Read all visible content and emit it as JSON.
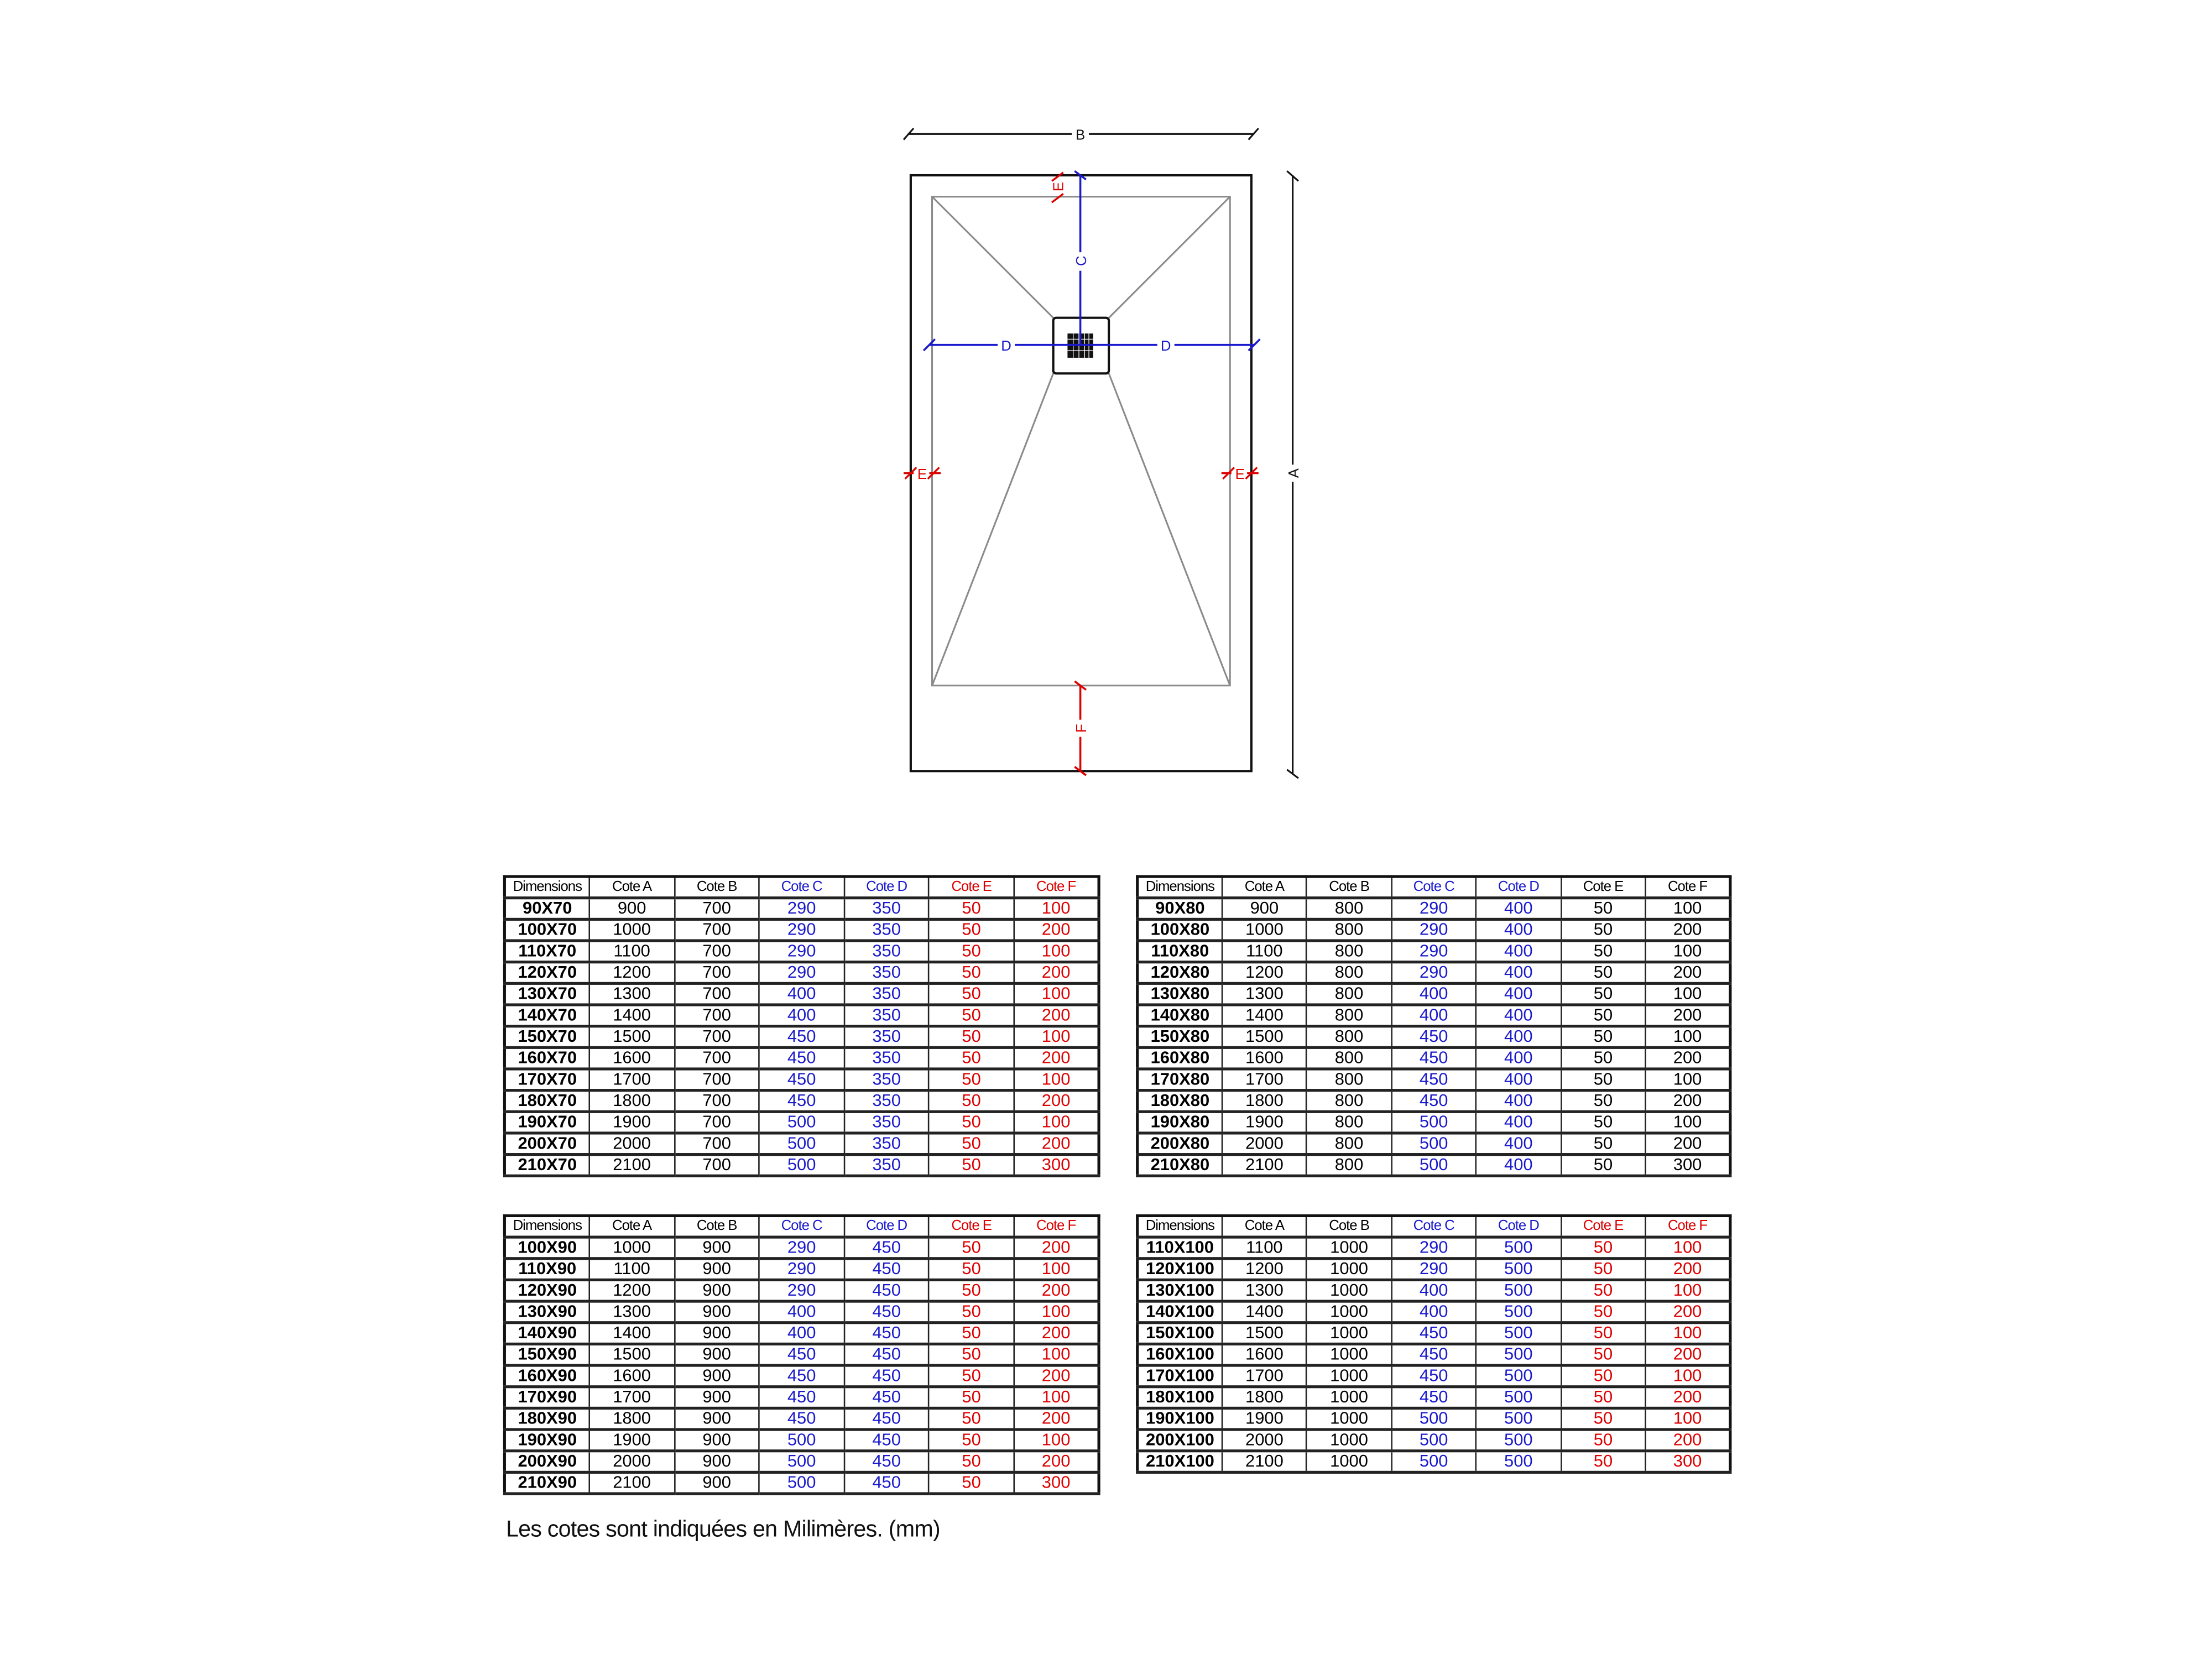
{
  "drawing": {
    "labels": {
      "A": "A",
      "B": "B",
      "C": "C",
      "D": "D",
      "E": "E",
      "F": "F"
    },
    "colors": {
      "outline": "#111111",
      "slope": "#8a8a8a",
      "blue": "#1a1acc",
      "red": "#dd0000"
    }
  },
  "headers": [
    "Dimensions",
    "Cote A",
    "Cote B",
    "Cote C",
    "Cote D",
    "Cote E",
    "Cote F"
  ],
  "tables": [
    {
      "column_colors": [
        "#000",
        "#000",
        "#000",
        "#1a1acc",
        "#1a1acc",
        "#dd0000",
        "#dd0000"
      ],
      "rows": [
        [
          "90X70",
          "900",
          "700",
          "290",
          "350",
          "50",
          "100"
        ],
        [
          "100X70",
          "1000",
          "700",
          "290",
          "350",
          "50",
          "200"
        ],
        [
          "110X70",
          "1100",
          "700",
          "290",
          "350",
          "50",
          "100"
        ],
        [
          "120X70",
          "1200",
          "700",
          "290",
          "350",
          "50",
          "200"
        ],
        [
          "130X70",
          "1300",
          "700",
          "400",
          "350",
          "50",
          "100"
        ],
        [
          "140X70",
          "1400",
          "700",
          "400",
          "350",
          "50",
          "200"
        ],
        [
          "150X70",
          "1500",
          "700",
          "450",
          "350",
          "50",
          "100"
        ],
        [
          "160X70",
          "1600",
          "700",
          "450",
          "350",
          "50",
          "200"
        ],
        [
          "170X70",
          "1700",
          "700",
          "450",
          "350",
          "50",
          "100"
        ],
        [
          "180X70",
          "1800",
          "700",
          "450",
          "350",
          "50",
          "200"
        ],
        [
          "190X70",
          "1900",
          "700",
          "500",
          "350",
          "50",
          "100"
        ],
        [
          "200X70",
          "2000",
          "700",
          "500",
          "350",
          "50",
          "200"
        ],
        [
          "210X70",
          "2100",
          "700",
          "500",
          "350",
          "50",
          "300"
        ]
      ]
    },
    {
      "column_colors": [
        "#000",
        "#000",
        "#000",
        "#1a1acc",
        "#1a1acc",
        "#000",
        "#000"
      ],
      "rows": [
        [
          "90X80",
          "900",
          "800",
          "290",
          "400",
          "50",
          "100"
        ],
        [
          "100X80",
          "1000",
          "800",
          "290",
          "400",
          "50",
          "200"
        ],
        [
          "110X80",
          "1100",
          "800",
          "290",
          "400",
          "50",
          "100"
        ],
        [
          "120X80",
          "1200",
          "800",
          "290",
          "400",
          "50",
          "200"
        ],
        [
          "130X80",
          "1300",
          "800",
          "400",
          "400",
          "50",
          "100"
        ],
        [
          "140X80",
          "1400",
          "800",
          "400",
          "400",
          "50",
          "200"
        ],
        [
          "150X80",
          "1500",
          "800",
          "450",
          "400",
          "50",
          "100"
        ],
        [
          "160X80",
          "1600",
          "800",
          "450",
          "400",
          "50",
          "200"
        ],
        [
          "170X80",
          "1700",
          "800",
          "450",
          "400",
          "50",
          "100"
        ],
        [
          "180X80",
          "1800",
          "800",
          "450",
          "400",
          "50",
          "200"
        ],
        [
          "190X80",
          "1900",
          "800",
          "500",
          "400",
          "50",
          "100"
        ],
        [
          "200X80",
          "2000",
          "800",
          "500",
          "400",
          "50",
          "200"
        ],
        [
          "210X80",
          "2100",
          "800",
          "500",
          "400",
          "50",
          "300"
        ]
      ]
    },
    {
      "column_colors": [
        "#000",
        "#000",
        "#000",
        "#1a1acc",
        "#1a1acc",
        "#dd0000",
        "#dd0000"
      ],
      "rows": [
        [
          "100X90",
          "1000",
          "900",
          "290",
          "450",
          "50",
          "200"
        ],
        [
          "110X90",
          "1100",
          "900",
          "290",
          "450",
          "50",
          "100"
        ],
        [
          "120X90",
          "1200",
          "900",
          "290",
          "450",
          "50",
          "200"
        ],
        [
          "130X90",
          "1300",
          "900",
          "400",
          "450",
          "50",
          "100"
        ],
        [
          "140X90",
          "1400",
          "900",
          "400",
          "450",
          "50",
          "200"
        ],
        [
          "150X90",
          "1500",
          "900",
          "450",
          "450",
          "50",
          "100"
        ],
        [
          "160X90",
          "1600",
          "900",
          "450",
          "450",
          "50",
          "200"
        ],
        [
          "170X90",
          "1700",
          "900",
          "450",
          "450",
          "50",
          "100"
        ],
        [
          "180X90",
          "1800",
          "900",
          "450",
          "450",
          "50",
          "200"
        ],
        [
          "190X90",
          "1900",
          "900",
          "500",
          "450",
          "50",
          "100"
        ],
        [
          "200X90",
          "2000",
          "900",
          "500",
          "450",
          "50",
          "200"
        ],
        [
          "210X90",
          "2100",
          "900",
          "500",
          "450",
          "50",
          "300"
        ]
      ]
    },
    {
      "column_colors": [
        "#000",
        "#000",
        "#000",
        "#1a1acc",
        "#1a1acc",
        "#dd0000",
        "#dd0000"
      ],
      "rows": [
        [
          "110X100",
          "1100",
          "1000",
          "290",
          "500",
          "50",
          "100"
        ],
        [
          "120X100",
          "1200",
          "1000",
          "290",
          "500",
          "50",
          "200"
        ],
        [
          "130X100",
          "1300",
          "1000",
          "400",
          "500",
          "50",
          "100"
        ],
        [
          "140X100",
          "1400",
          "1000",
          "400",
          "500",
          "50",
          "200"
        ],
        [
          "150X100",
          "1500",
          "1000",
          "450",
          "500",
          "50",
          "100"
        ],
        [
          "160X100",
          "1600",
          "1000",
          "450",
          "500",
          "50",
          "200"
        ],
        [
          "170X100",
          "1700",
          "1000",
          "450",
          "500",
          "50",
          "100"
        ],
        [
          "180X100",
          "1800",
          "1000",
          "450",
          "500",
          "50",
          "200"
        ],
        [
          "190X100",
          "1900",
          "1000",
          "500",
          "500",
          "50",
          "100"
        ],
        [
          "200X100",
          "2000",
          "1000",
          "500",
          "500",
          "50",
          "200"
        ],
        [
          "210X100",
          "2100",
          "1000",
          "500",
          "500",
          "50",
          "300"
        ]
      ]
    }
  ],
  "footer": "Les cotes sont indiquées en Milimères. (mm)"
}
